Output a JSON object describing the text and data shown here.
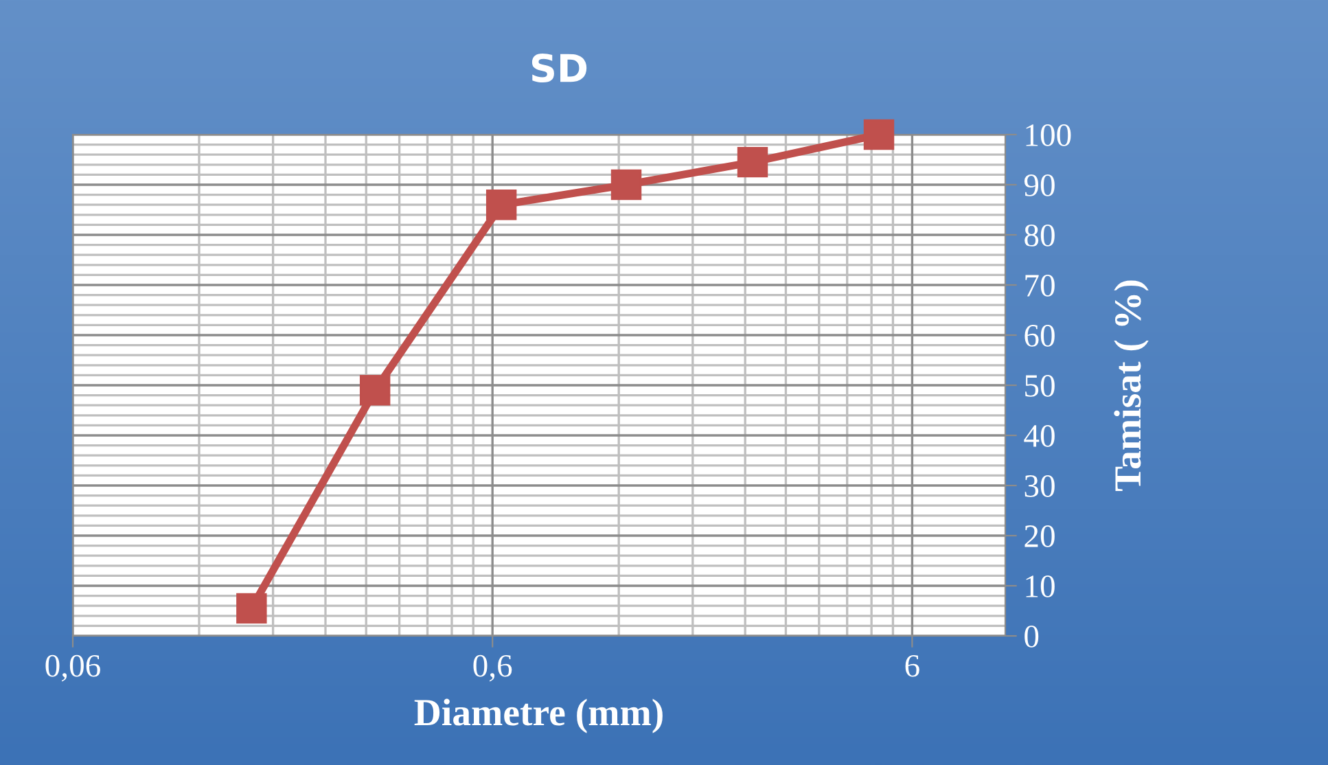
{
  "chart_data": {
    "type": "line",
    "title": "SD",
    "xlabel": "Diametre (mm)",
    "ylabel": "Tamisat ( %)",
    "x": [
      0.16,
      0.315,
      0.63,
      1.25,
      2.5,
      5
    ],
    "series": [
      {
        "color": "#c0504d",
        "values": [
          5.5,
          49,
          86,
          90,
          94.5,
          100
        ]
      }
    ],
    "log": "x",
    "xlim": [
      0.06,
      10
    ],
    "xticks": [
      {
        "value": 0.06,
        "label": "0,06"
      },
      {
        "value": 0.6,
        "label": "0,6"
      },
      6
    ],
    "ylim": [
      0,
      100
    ],
    "yticks": [
      0,
      10,
      20,
      30,
      40,
      50,
      60,
      70,
      80,
      90,
      100
    ],
    "grid": true,
    "marker": "square",
    "line_style": "solid"
  }
}
